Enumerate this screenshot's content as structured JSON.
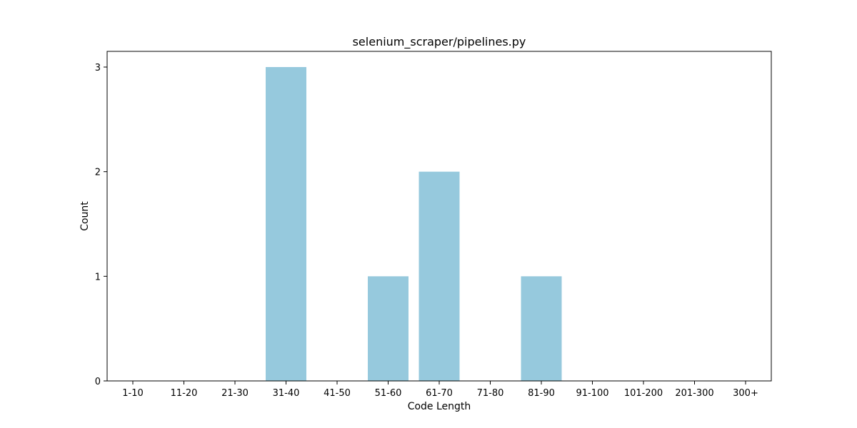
{
  "chart_data": {
    "type": "bar",
    "title": "selenium_scraper/pipelines.py",
    "xlabel": "Code Length",
    "ylabel": "Count",
    "categories": [
      "1-10",
      "11-20",
      "21-30",
      "31-40",
      "41-50",
      "51-60",
      "61-70",
      "71-80",
      "81-90",
      "91-100",
      "101-200",
      "201-300",
      "300+"
    ],
    "values": [
      0,
      0,
      0,
      3,
      0,
      1,
      2,
      0,
      1,
      0,
      0,
      0,
      0
    ],
    "ylim": [
      0,
      3.15
    ],
    "yticks": [
      "0",
      "1",
      "2",
      "3"
    ],
    "bar_color": "#96c9dd",
    "grid": false,
    "legend": "none"
  }
}
